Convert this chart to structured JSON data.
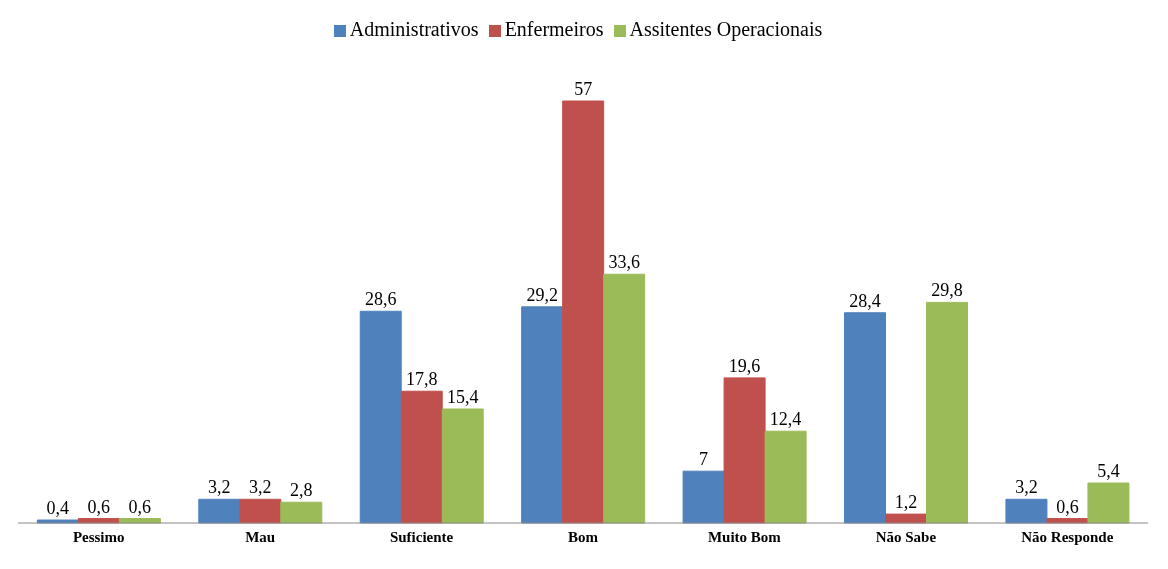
{
  "chart_data": {
    "type": "bar",
    "categories": [
      "Pessimo",
      "Mau",
      "Suficiente",
      "Bom",
      "Muito Bom",
      "Não Sabe",
      "Não Responde"
    ],
    "series": [
      {
        "name": "Administrativos",
        "color": "#4f81bd",
        "values": [
          0.4,
          3.2,
          28.6,
          29.2,
          7,
          28.4,
          3.2
        ],
        "value_labels": [
          "0,4",
          "3,2",
          "28,6",
          "29,2",
          "7",
          "28,4",
          "3,2"
        ]
      },
      {
        "name": "Enfermeiros",
        "color": "#c0504d",
        "values": [
          0.6,
          3.2,
          17.8,
          57,
          19.6,
          1.2,
          0.6
        ],
        "value_labels": [
          "0,6",
          "3,2",
          "17,8",
          "57",
          "19,6",
          "1,2",
          "0,6"
        ]
      },
      {
        "name": "Assitentes Operacionais",
        "color": "#9bbb59",
        "values": [
          0.6,
          2.8,
          15.4,
          33.6,
          12.4,
          29.8,
          5.4
        ],
        "value_labels": [
          "0,6",
          "2,8",
          "15,4",
          "33,6",
          "12,4",
          "29,8",
          "5,4"
        ]
      }
    ],
    "grid": false,
    "legend": "top"
  }
}
